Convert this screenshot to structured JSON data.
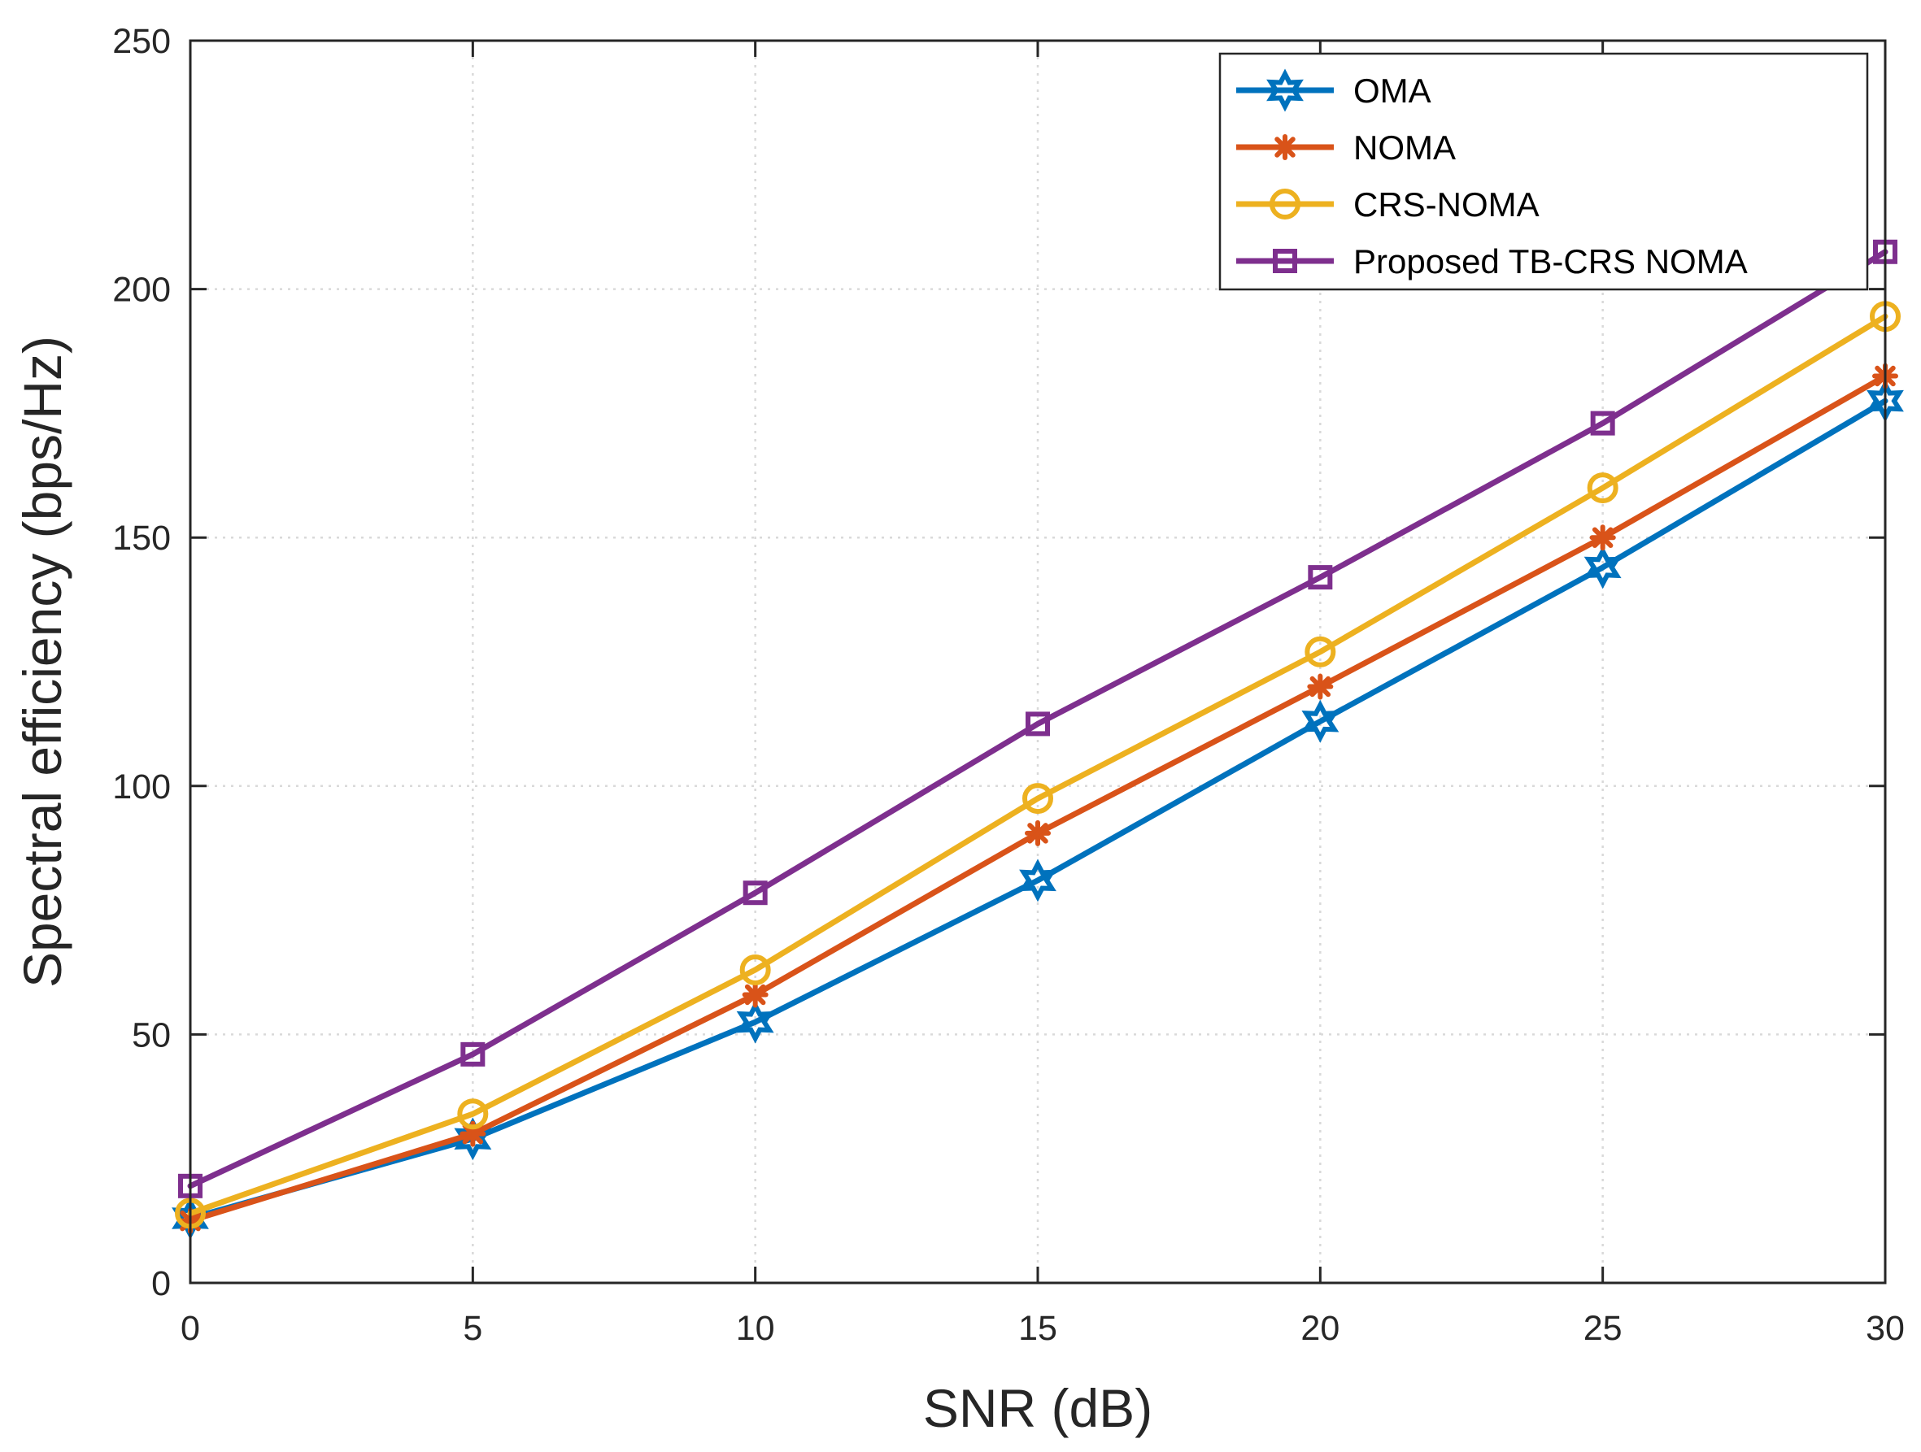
{
  "chart_data": {
    "type": "line",
    "title": "",
    "xlabel": "SNR (dB)",
    "ylabel": "Spectral efficiency (bps/Hz)",
    "x": [
      0,
      5,
      10,
      15,
      20,
      25,
      30
    ],
    "xlim": [
      0,
      30
    ],
    "ylim": [
      0,
      250
    ],
    "xticks": [
      "0",
      "5",
      "10",
      "15",
      "20",
      "25",
      "30"
    ],
    "yticks": [
      "0",
      "50",
      "100",
      "150",
      "200",
      "250"
    ],
    "grid": true,
    "legend_position": "top-right",
    "series": [
      {
        "name": "OMA",
        "color": "#0072BD",
        "marker": "hexagram",
        "values": [
          13,
          29,
          52.5,
          81,
          113,
          144,
          177.5
        ]
      },
      {
        "name": "NOMA",
        "color": "#D95319",
        "marker": "asterisk",
        "values": [
          12.5,
          30,
          58,
          90.5,
          120,
          150,
          182.5
        ]
      },
      {
        "name": "CRS-NOMA",
        "color": "#EDB120",
        "marker": "circle",
        "values": [
          14,
          34,
          63,
          97.5,
          127,
          160,
          194.5
        ]
      },
      {
        "name": "Proposed TB-CRS NOMA",
        "color": "#7E2F8E",
        "marker": "square",
        "values": [
          19.5,
          46,
          78.5,
          112.5,
          142,
          173,
          207.5
        ]
      }
    ]
  }
}
